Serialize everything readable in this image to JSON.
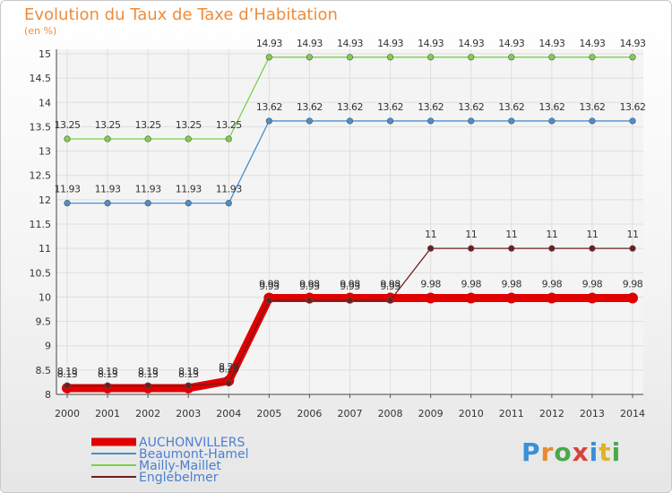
{
  "title": "Evolution du Taux de Taxe d’Habitation",
  "subtitle": "(en %)",
  "logo": "Proxiti",
  "chart_data": {
    "type": "line",
    "x": [
      "2000",
      "2001",
      "2002",
      "2003",
      "2004",
      "2005",
      "2006",
      "2007",
      "2008",
      "2009",
      "2010",
      "2011",
      "2012",
      "2013",
      "2014"
    ],
    "ylim": [
      8,
      15
    ],
    "yticks": [
      "8",
      "8.5",
      "9",
      "9.5",
      "10",
      "10.5",
      "11",
      "11.5",
      "12",
      "12.5",
      "13",
      "13.5",
      "14",
      "14.5",
      "15"
    ],
    "grid": true,
    "legend_position": "bottom-left",
    "series": [
      {
        "name": "AUCHONVILLERS",
        "color": "#e00000",
        "values": [
          8.13,
          8.13,
          8.13,
          8.13,
          8.28,
          9.98,
          9.98,
          9.98,
          9.98,
          9.98,
          9.98,
          9.98,
          9.98,
          9.98,
          9.98
        ],
        "labels": [
          "8.13",
          "8.13",
          "8.13",
          "8.13",
          "8.28",
          "9.98",
          "9.98",
          "9.98",
          "9.98",
          "9.98",
          "9.98",
          "9.98",
          "9.98",
          "9.98",
          "9.98"
        ]
      },
      {
        "name": "Beaumont-Hamel",
        "color": "#4a8fce",
        "values": [
          11.93,
          11.93,
          11.93,
          11.93,
          11.93,
          13.62,
          13.62,
          13.62,
          13.62,
          13.62,
          13.62,
          13.62,
          13.62,
          13.62,
          13.62
        ],
        "labels": [
          "11.93",
          "11.93",
          "11.93",
          "11.93",
          "11.93",
          "13.62",
          "13.62",
          "13.62",
          "13.62",
          "13.62",
          "13.62",
          "13.62",
          "13.62",
          "13.62",
          "13.62"
        ]
      },
      {
        "name": "Mailly-Maillet",
        "color": "#7ed04a",
        "values": [
          13.25,
          13.25,
          13.25,
          13.25,
          13.25,
          14.93,
          14.93,
          14.93,
          14.93,
          14.93,
          14.93,
          14.93,
          14.93,
          14.93,
          14.93
        ],
        "labels": [
          "13.25",
          "13.25",
          "13.25",
          "13.25",
          "13.25",
          "14.93",
          "14.93",
          "14.93",
          "14.93",
          "14.93",
          "14.93",
          "14.93",
          "14.93",
          "14.93",
          "14.93"
        ]
      },
      {
        "name": "Englebelmer",
        "color": "#6e1e1e",
        "values": [
          8.18,
          8.18,
          8.18,
          8.18,
          8.23,
          9.93,
          9.93,
          9.93,
          9.93,
          11,
          11,
          11,
          11,
          11,
          11
        ],
        "labels": [
          "8.18",
          "8.18",
          "8.18",
          "8.18",
          "8.23",
          "9.93",
          "9.93",
          "9.93",
          "9.93",
          "11",
          "11",
          "11",
          "11",
          "11",
          "11"
        ]
      }
    ]
  }
}
